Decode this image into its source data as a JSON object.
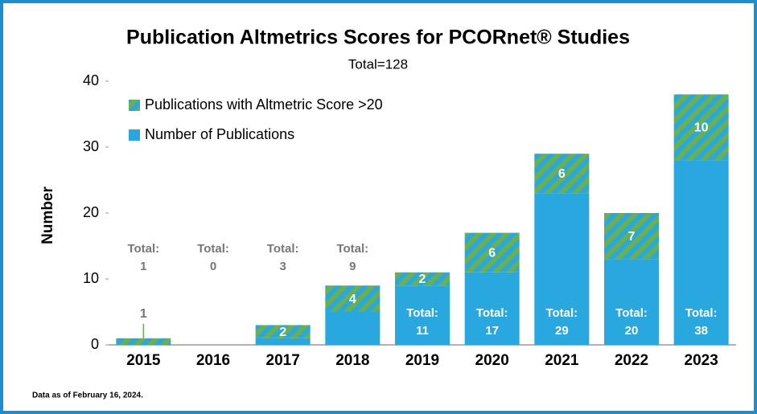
{
  "chart_data": {
    "type": "bar",
    "title": "Publication Altmetrics Scores for PCORnet® Studies",
    "subtitle": "Total=128",
    "y_label": "Number",
    "footnote": "Data as of February 16, 2024.",
    "categories": [
      "2015",
      "2016",
      "2017",
      "2018",
      "2019",
      "2020",
      "2021",
      "2022",
      "2023"
    ],
    "series": [
      {
        "name": "Number of Publications",
        "color": "#29a8e0",
        "values": [
          0,
          0,
          1,
          5,
          9,
          11,
          23,
          13,
          28
        ]
      },
      {
        "name": "Publications with Altmetric Score >20",
        "color": "#6ab04c",
        "hatched": true,
        "values": [
          1,
          0,
          2,
          4,
          2,
          6,
          6,
          7,
          10
        ],
        "value_labels": [
          "1",
          null,
          "2",
          "4",
          "2",
          "6",
          "6",
          "7",
          "10"
        ]
      }
    ],
    "total_label": "Total:",
    "totals": [
      1,
      0,
      3,
      9,
      11,
      17,
      29,
      20,
      38
    ],
    "legend_order": [
      1,
      0
    ],
    "ylim": [
      0,
      40
    ],
    "yticks": [
      0,
      10,
      20,
      30,
      40
    ],
    "grid": false,
    "stacked": true
  }
}
